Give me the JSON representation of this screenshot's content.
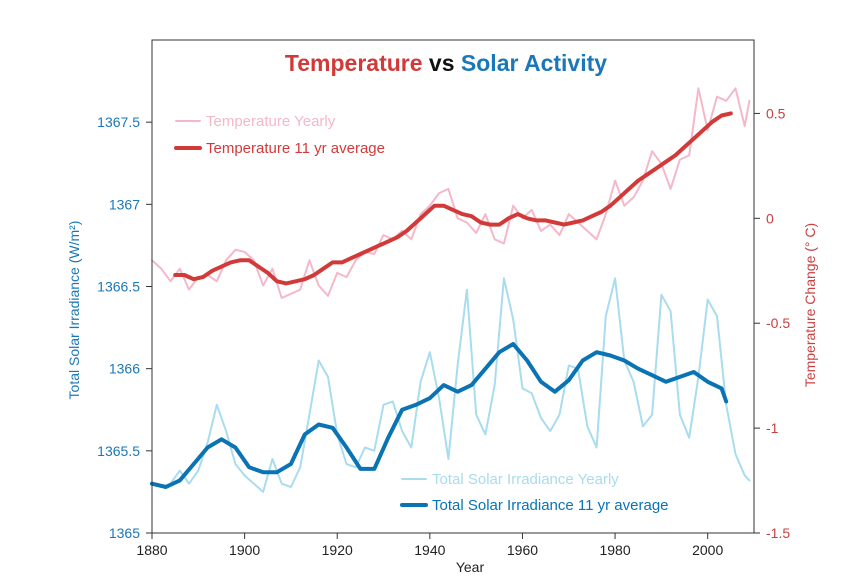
{
  "chart_data": {
    "type": "line",
    "title": {
      "part1": "Temperature",
      "part2": " vs ",
      "part3": "Solar Activity"
    },
    "xlabel": "Year",
    "ylabel_left": "Total Solar Irradiance (W/m²)",
    "ylabel_right": "Temperature Change (° C)",
    "xlim": [
      1880,
      2010
    ],
    "ylim_left": [
      1365,
      1368
    ],
    "ylim_right": [
      -1.5,
      0.85
    ],
    "x_ticks": [
      "1880",
      "1900",
      "1920",
      "1940",
      "1960",
      "1980",
      "2000"
    ],
    "y_left_ticks": [
      "1365",
      "1365.5",
      "1366",
      "1366.5",
      "1367",
      "1367.5"
    ],
    "y_right_ticks": [
      "-1.5",
      "-1",
      "-0.5",
      "0",
      "0.5"
    ],
    "colors": {
      "temp_yearly": "#f4b8c8",
      "temp_avg": "#d23a3a",
      "tsi_yearly": "#a9dcee",
      "tsi_avg": "#0a73b3",
      "title_black": "#111111",
      "left_axis": "#1a78b8",
      "right_axis": "#c94040"
    },
    "legend_temp": [
      {
        "name": "Temperature Yearly",
        "color": "#f4b8c8",
        "width": 2
      },
      {
        "name": "Temperature 11 yr average",
        "color": "#d23a3a",
        "width": 4
      }
    ],
    "legend_tsi": [
      {
        "name": "Total Solar Irradiance Yearly",
        "color": "#a9dcee",
        "width": 2
      },
      {
        "name": "Total Solar Irradiance 11 yr average",
        "color": "#0a73b3",
        "width": 4
      }
    ],
    "series": [
      {
        "name": "Temperature Yearly",
        "axis": "right",
        "x": [
          1880,
          1882,
          1884,
          1886,
          1888,
          1890,
          1892,
          1894,
          1896,
          1898,
          1900,
          1902,
          1904,
          1906,
          1908,
          1910,
          1912,
          1914,
          1916,
          1918,
          1920,
          1922,
          1924,
          1926,
          1928,
          1930,
          1932,
          1934,
          1936,
          1938,
          1940,
          1942,
          1944,
          1946,
          1948,
          1950,
          1952,
          1954,
          1956,
          1958,
          1960,
          1962,
          1964,
          1966,
          1968,
          1970,
          1972,
          1974,
          1976,
          1978,
          1980,
          1982,
          1984,
          1986,
          1988,
          1990,
          1992,
          1994,
          1996,
          1998,
          2000,
          2002,
          2004,
          2006,
          2008,
          2009
        ],
        "y": [
          -0.2,
          -0.24,
          -0.3,
          -0.24,
          -0.34,
          -0.28,
          -0.27,
          -0.3,
          -0.2,
          -0.15,
          -0.16,
          -0.2,
          -0.32,
          -0.24,
          -0.38,
          -0.36,
          -0.34,
          -0.2,
          -0.32,
          -0.37,
          -0.26,
          -0.28,
          -0.2,
          -0.16,
          -0.17,
          -0.08,
          -0.1,
          -0.06,
          -0.1,
          0.02,
          0.06,
          0.12,
          0.14,
          0.0,
          -0.02,
          -0.07,
          0.02,
          -0.1,
          -0.12,
          0.06,
          0.0,
          0.04,
          -0.06,
          -0.03,
          -0.08,
          0.02,
          -0.02,
          -0.06,
          -0.1,
          0.02,
          0.18,
          0.06,
          0.1,
          0.18,
          0.32,
          0.26,
          0.14,
          0.28,
          0.3,
          0.62,
          0.42,
          0.58,
          0.56,
          0.62,
          0.44,
          0.56
        ]
      },
      {
        "name": "Temperature 11 yr average",
        "axis": "right",
        "x": [
          1885,
          1887,
          1889,
          1891,
          1893,
          1895,
          1897,
          1899,
          1901,
          1903,
          1905,
          1907,
          1909,
          1911,
          1913,
          1915,
          1917,
          1919,
          1921,
          1923,
          1925,
          1927,
          1929,
          1931,
          1933,
          1935,
          1937,
          1939,
          1941,
          1943,
          1945,
          1947,
          1949,
          1951,
          1953,
          1955,
          1957,
          1959,
          1961,
          1963,
          1965,
          1967,
          1969,
          1971,
          1973,
          1975,
          1977,
          1979,
          1981,
          1983,
          1985,
          1987,
          1989,
          1991,
          1993,
          1995,
          1997,
          1999,
          2001,
          2003,
          2005
        ],
        "y": [
          -0.27,
          -0.27,
          -0.29,
          -0.28,
          -0.25,
          -0.23,
          -0.21,
          -0.2,
          -0.2,
          -0.23,
          -0.26,
          -0.3,
          -0.31,
          -0.3,
          -0.29,
          -0.27,
          -0.24,
          -0.21,
          -0.21,
          -0.19,
          -0.17,
          -0.15,
          -0.13,
          -0.11,
          -0.09,
          -0.06,
          -0.02,
          0.02,
          0.06,
          0.06,
          0.04,
          0.02,
          0.01,
          -0.02,
          -0.03,
          -0.03,
          0.0,
          0.02,
          0.0,
          -0.01,
          -0.01,
          -0.02,
          -0.03,
          -0.02,
          -0.01,
          0.01,
          0.03,
          0.06,
          0.1,
          0.14,
          0.18,
          0.21,
          0.24,
          0.27,
          0.3,
          0.34,
          0.38,
          0.42,
          0.46,
          0.49,
          0.5
        ]
      },
      {
        "name": "Total Solar Irradiance Yearly",
        "axis": "left",
        "x": [
          1880,
          1882,
          1884,
          1886,
          1888,
          1890,
          1892,
          1894,
          1896,
          1898,
          1900,
          1902,
          1904,
          1906,
          1908,
          1910,
          1912,
          1914,
          1916,
          1918,
          1920,
          1922,
          1924,
          1926,
          1928,
          1930,
          1932,
          1934,
          1936,
          1938,
          1940,
          1942,
          1944,
          1946,
          1948,
          1950,
          1952,
          1954,
          1956,
          1958,
          1960,
          1962,
          1964,
          1966,
          1968,
          1970,
          1972,
          1974,
          1976,
          1978,
          1980,
          1982,
          1984,
          1986,
          1988,
          1990,
          1992,
          1994,
          1996,
          1998,
          2000,
          2002,
          2004,
          2006,
          2008,
          2009
        ],
        "y": [
          1365.3,
          1365.28,
          1365.3,
          1365.38,
          1365.3,
          1365.38,
          1365.55,
          1365.78,
          1365.62,
          1365.42,
          1365.35,
          1365.3,
          1365.25,
          1365.45,
          1365.3,
          1365.28,
          1365.4,
          1365.72,
          1366.05,
          1365.95,
          1365.6,
          1365.42,
          1365.4,
          1365.52,
          1365.5,
          1365.78,
          1365.8,
          1365.62,
          1365.52,
          1365.92,
          1366.1,
          1365.82,
          1365.45,
          1366.02,
          1366.48,
          1365.72,
          1365.6,
          1365.9,
          1366.55,
          1366.3,
          1365.88,
          1365.85,
          1365.7,
          1365.62,
          1365.72,
          1366.02,
          1366.0,
          1365.65,
          1365.52,
          1366.32,
          1366.55,
          1366.05,
          1365.92,
          1365.65,
          1365.72,
          1366.45,
          1366.35,
          1365.72,
          1365.58,
          1365.95,
          1366.42,
          1366.32,
          1365.78,
          1365.48,
          1365.35,
          1365.32
        ]
      },
      {
        "name": "Total Solar Irradiance 11 yr average",
        "axis": "left",
        "x": [
          1880,
          1883,
          1886,
          1889,
          1892,
          1895,
          1898,
          1901,
          1904,
          1907,
          1910,
          1913,
          1916,
          1919,
          1922,
          1925,
          1928,
          1931,
          1934,
          1937,
          1940,
          1943,
          1946,
          1949,
          1952,
          1955,
          1958,
          1961,
          1964,
          1967,
          1970,
          1973,
          1976,
          1979,
          1982,
          1985,
          1988,
          1991,
          1994,
          1997,
          2000,
          2003,
          2004
        ],
        "y": [
          1365.3,
          1365.28,
          1365.32,
          1365.42,
          1365.52,
          1365.57,
          1365.52,
          1365.4,
          1365.37,
          1365.37,
          1365.42,
          1365.6,
          1365.66,
          1365.64,
          1365.52,
          1365.39,
          1365.39,
          1365.58,
          1365.75,
          1365.78,
          1365.82,
          1365.9,
          1365.86,
          1365.9,
          1366.0,
          1366.1,
          1366.15,
          1366.05,
          1365.92,
          1365.86,
          1365.93,
          1366.05,
          1366.1,
          1366.08,
          1366.05,
          1366.0,
          1365.96,
          1365.92,
          1365.95,
          1365.98,
          1365.92,
          1365.88,
          1365.8
        ]
      }
    ]
  }
}
